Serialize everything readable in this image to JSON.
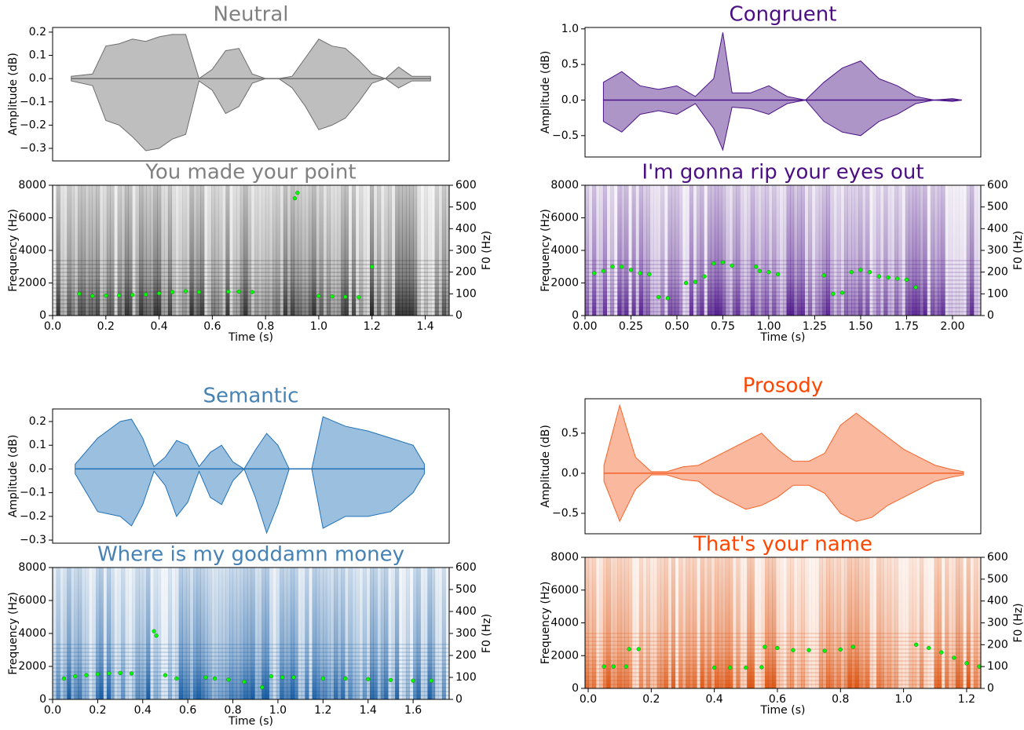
{
  "chart_data": [
    {
      "type": "waveform",
      "title": "Neutral",
      "title_color": "#808080",
      "ylabel": "Amplitude (dB)",
      "xlim": [
        0,
        1.49
      ],
      "ylim": [
        -0.354,
        0.22
      ],
      "yticks": [
        {
          "value": -0.3,
          "label": "−0.3"
        },
        {
          "value": -0.2,
          "label": "−0.2"
        },
        {
          "value": -0.1,
          "label": "−0.1"
        },
        {
          "value": 0,
          "label": "0.0"
        },
        0.1,
        0.2
      ],
      "x": [
        0.07,
        0.15,
        0.2,
        0.25,
        0.3,
        0.35,
        0.4,
        0.45,
        0.5,
        0.55,
        0.6,
        0.65,
        0.7,
        0.75,
        0.8,
        0.85,
        0.9,
        0.95,
        1.0,
        1.05,
        1.1,
        1.15,
        1.2,
        1.25,
        1.3,
        1.35,
        1.42
      ],
      "series": [
        {
          "color": "#6e6e6e",
          "values": [
            0.01,
            0.02,
            0.14,
            0.15,
            0.17,
            0.16,
            0.18,
            0.19,
            0.19,
            0.0,
            0.04,
            0.12,
            0.13,
            0.02,
            0.0,
            0.0,
            0.01,
            0.09,
            0.17,
            0.14,
            0.13,
            0.08,
            0.02,
            0.0,
            0.05,
            0.01,
            0.01
          ]
        },
        {
          "color": "#6e6e6e",
          "values": [
            -0.01,
            -0.03,
            -0.18,
            -0.2,
            -0.25,
            -0.31,
            -0.3,
            -0.26,
            -0.24,
            -0.01,
            -0.05,
            -0.15,
            -0.12,
            -0.02,
            0,
            0,
            -0.04,
            -0.12,
            -0.22,
            -0.2,
            -0.17,
            -0.1,
            -0.02,
            0,
            -0.04,
            -0.01,
            -0.01
          ]
        }
      ]
    },
    {
      "type": "spectrogram",
      "title": "You made your point",
      "title_color": "#808080",
      "color": "#1a1a1a",
      "xlabel": "Time (s)",
      "ylabel": "Frequency (Hz)",
      "y2label": "F0 (Hz)",
      "xlim": [
        0,
        1.49
      ],
      "xticks": [
        {
          "value": 0,
          "label": "0.0"
        },
        0.2,
        0.4,
        0.6,
        0.8,
        {
          "value": 1,
          "label": "1.0"
        },
        1.2,
        1.4
      ],
      "ylim": [
        0,
        8000
      ],
      "yticks": [
        0,
        2000,
        4000,
        6000,
        8000
      ],
      "y2lim": [
        0,
        600
      ],
      "y2ticks": [
        0,
        100,
        200,
        300,
        400,
        500,
        600
      ],
      "series": [
        {
          "color": "#00ff00",
          "axis": "y2",
          "x": [
            0.1,
            0.15,
            0.2,
            0.25,
            0.3,
            0.35,
            0.4,
            0.45,
            0.5,
            0.55,
            0.66,
            0.7,
            0.75,
            0.91,
            0.92,
            1.0,
            1.05,
            1.1,
            1.15,
            1.2
          ],
          "values": [
            100,
            90,
            92,
            93,
            95,
            97,
            102,
            108,
            112,
            108,
            110,
            110,
            108,
            540,
            565,
            90,
            88,
            86,
            84,
            225
          ]
        }
      ]
    },
    {
      "type": "waveform",
      "title": "Congruent",
      "title_color": "#4b0f82",
      "ylabel": "Amplitude (dB)",
      "xlim": [
        0,
        2.154
      ],
      "ylim": [
        -0.8,
        1.02
      ],
      "yticks": [
        {
          "value": -0.5,
          "label": "−0.5"
        },
        {
          "value": 0,
          "label": "0.0"
        },
        0.5,
        {
          "value": 1,
          "label": "1.0"
        }
      ],
      "x": [
        0.1,
        0.2,
        0.3,
        0.4,
        0.5,
        0.6,
        0.7,
        0.75,
        0.8,
        0.9,
        1.0,
        1.1,
        1.2,
        1.3,
        1.4,
        1.5,
        1.6,
        1.7,
        1.8,
        1.9,
        2.0,
        2.05
      ],
      "series": [
        {
          "color": "#4b1486",
          "values": [
            0.25,
            0.4,
            0.2,
            0.15,
            0.2,
            0.05,
            0.3,
            0.95,
            0.1,
            0.1,
            0.2,
            0.05,
            0.0,
            0.25,
            0.45,
            0.55,
            0.3,
            0.2,
            0.05,
            0.0,
            0.02,
            0.0
          ]
        },
        {
          "color": "#4b1486",
          "values": [
            -0.3,
            -0.45,
            -0.2,
            -0.15,
            -0.2,
            -0.05,
            -0.4,
            -0.7,
            -0.1,
            -0.12,
            -0.2,
            -0.05,
            0,
            -0.3,
            -0.45,
            -0.5,
            -0.3,
            -0.2,
            -0.05,
            0,
            -0.02,
            0
          ]
        }
      ]
    },
    {
      "type": "spectrogram",
      "title": "I'm gonna rip your eyes out",
      "title_color": "#4b0f82",
      "color": "#4b1486",
      "xlabel": "Time (s)",
      "ylabel": "Frequency (Hz)",
      "y2label": "F0 (Hz)",
      "xlim": [
        0,
        2.154
      ],
      "xticks": [
        {
          "value": 0,
          "label": "0.00"
        },
        0.25,
        {
          "value": 0.5,
          "label": "0.50"
        },
        0.75,
        {
          "value": 1,
          "label": "1.00"
        },
        1.25,
        {
          "value": 1.5,
          "label": "1.50"
        },
        1.75,
        {
          "value": 2,
          "label": "2.00"
        }
      ],
      "ylim": [
        0,
        8000
      ],
      "yticks": [
        0,
        2000,
        4000,
        6000,
        8000
      ],
      "y2lim": [
        0,
        600
      ],
      "y2ticks": [
        0,
        100,
        200,
        300,
        400,
        500,
        600
      ],
      "series": [
        {
          "color": "#00ff00",
          "axis": "y2",
          "x": [
            0.05,
            0.1,
            0.15,
            0.2,
            0.25,
            0.3,
            0.35,
            0.4,
            0.45,
            0.55,
            0.6,
            0.65,
            0.7,
            0.75,
            0.8,
            0.93,
            0.95,
            1.0,
            1.05,
            1.3,
            1.35,
            1.4,
            1.45,
            1.5,
            1.55,
            1.6,
            1.65,
            1.7,
            1.75,
            1.8
          ],
          "values": [
            195,
            205,
            225,
            225,
            210,
            195,
            190,
            85,
            80,
            150,
            155,
            180,
            240,
            245,
            230,
            225,
            205,
            200,
            190,
            185,
            100,
            105,
            200,
            210,
            200,
            180,
            175,
            170,
            165,
            130
          ]
        }
      ]
    },
    {
      "type": "waveform",
      "title": "Semantic",
      "title_color": "#4682b4",
      "ylabel": "Amplitude (dB)",
      "xlim": [
        0,
        1.76
      ],
      "ylim": [
        -0.313,
        0.253
      ],
      "yticks": [
        {
          "value": -0.3,
          "label": "−0.3"
        },
        {
          "value": -0.2,
          "label": "−0.2"
        },
        {
          "value": -0.1,
          "label": "−0.1"
        },
        {
          "value": 0,
          "label": "0.0"
        },
        0.1,
        0.2
      ],
      "x": [
        0.1,
        0.2,
        0.3,
        0.35,
        0.4,
        0.45,
        0.5,
        0.55,
        0.6,
        0.65,
        0.7,
        0.75,
        0.8,
        0.85,
        0.9,
        0.95,
        1.0,
        1.05,
        1.1,
        1.15,
        1.2,
        1.3,
        1.4,
        1.5,
        1.6,
        1.65
      ],
      "series": [
        {
          "color": "#2171b5",
          "values": [
            0.02,
            0.13,
            0.2,
            0.21,
            0.13,
            0.01,
            0.05,
            0.12,
            0.1,
            0.01,
            0.07,
            0.1,
            0.03,
            0.0,
            0.08,
            0.15,
            0.1,
            0.0,
            0.0,
            0.0,
            0.22,
            0.18,
            0.16,
            0.13,
            0.1,
            0.02
          ]
        },
        {
          "color": "#2171b5",
          "values": [
            -0.02,
            -0.18,
            -0.2,
            -0.24,
            -0.15,
            -0.01,
            -0.07,
            -0.2,
            -0.14,
            -0.01,
            -0.12,
            -0.15,
            -0.05,
            0,
            -0.12,
            -0.27,
            -0.15,
            0,
            0,
            0,
            -0.25,
            -0.2,
            -0.2,
            -0.18,
            -0.1,
            -0.02
          ]
        }
      ]
    },
    {
      "type": "spectrogram",
      "title": "Where is my goddamn money",
      "title_color": "#4682b4",
      "color": "#08519c",
      "xlabel": "Time (s)",
      "ylabel": "Frequency (Hz)",
      "y2label": "F0 (Hz)",
      "xlim": [
        0,
        1.76
      ],
      "xticks": [
        {
          "value": 0,
          "label": "0.0"
        },
        0.2,
        0.4,
        0.6,
        0.8,
        {
          "value": 1,
          "label": "1.0"
        },
        1.2,
        1.4,
        1.6
      ],
      "ylim": [
        0,
        8000
      ],
      "yticks": [
        0,
        2000,
        4000,
        6000,
        8000
      ],
      "y2lim": [
        0,
        600
      ],
      "y2ticks": [
        0,
        100,
        200,
        300,
        400,
        500,
        600
      ],
      "series": [
        {
          "color": "#00ff00",
          "axis": "y2",
          "x": [
            0.05,
            0.1,
            0.15,
            0.2,
            0.25,
            0.3,
            0.35,
            0.45,
            0.46,
            0.5,
            0.55,
            0.68,
            0.72,
            0.78,
            0.85,
            0.93,
            0.97,
            1.02,
            1.07,
            1.2,
            1.3,
            1.4,
            1.5,
            1.6,
            1.68
          ],
          "values": [
            95,
            105,
            110,
            115,
            118,
            120,
            118,
            310,
            290,
            110,
            95,
            100,
            95,
            90,
            80,
            55,
            105,
            100,
            100,
            95,
            95,
            92,
            88,
            85,
            85
          ]
        }
      ]
    },
    {
      "type": "waveform",
      "title": "Prosody",
      "title_color": "#ff4500",
      "ylabel": "Amplitude (dB)",
      "xlim": [
        -0.01,
        1.245
      ],
      "ylim": [
        -0.755,
        0.93
      ],
      "yticks": [
        {
          "value": -0.5,
          "label": "−0.5"
        },
        {
          "value": 0,
          "label": "0.0"
        },
        0.5
      ],
      "x": [
        0.05,
        0.1,
        0.15,
        0.2,
        0.25,
        0.3,
        0.35,
        0.4,
        0.45,
        0.5,
        0.55,
        0.6,
        0.65,
        0.7,
        0.75,
        0.8,
        0.85,
        0.9,
        0.95,
        1.0,
        1.05,
        1.1,
        1.15,
        1.19
      ],
      "series": [
        {
          "color": "#f4642a",
          "values": [
            0.1,
            0.85,
            0.2,
            0.02,
            0.02,
            0.08,
            0.1,
            0.2,
            0.3,
            0.4,
            0.5,
            0.3,
            0.15,
            0.15,
            0.25,
            0.6,
            0.75,
            0.6,
            0.45,
            0.3,
            0.2,
            0.1,
            0.05,
            0.02
          ]
        },
        {
          "color": "#f4642a",
          "values": [
            -0.1,
            -0.6,
            -0.2,
            -0.02,
            -0.02,
            -0.08,
            -0.1,
            -0.25,
            -0.35,
            -0.45,
            -0.4,
            -0.3,
            -0.15,
            -0.15,
            -0.25,
            -0.5,
            -0.6,
            -0.55,
            -0.4,
            -0.3,
            -0.2,
            -0.1,
            -0.05,
            -0.02
          ]
        }
      ]
    },
    {
      "type": "spectrogram",
      "title": "That's your name",
      "title_color": "#ff4500",
      "color": "#d94801",
      "xlabel": "Time (s)",
      "ylabel": "Frequency (Hz)",
      "y2label": "F0 (Hz)",
      "xlim": [
        -0.01,
        1.245
      ],
      "xticks": [
        {
          "value": 0,
          "label": "0.0"
        },
        0.2,
        0.4,
        0.6,
        0.8,
        {
          "value": 1,
          "label": "1.0"
        },
        1.2
      ],
      "ylim": [
        0,
        8000
      ],
      "yticks": [
        0,
        2000,
        4000,
        6000,
        8000
      ],
      "y2lim": [
        0,
        600
      ],
      "y2ticks": [
        0,
        100,
        200,
        300,
        400,
        500,
        600
      ],
      "series": [
        {
          "color": "#00ff00",
          "axis": "y2",
          "x": [
            0.05,
            0.08,
            0.12,
            0.13,
            0.16,
            0.4,
            0.45,
            0.5,
            0.55,
            0.56,
            0.6,
            0.65,
            0.7,
            0.75,
            0.8,
            0.84,
            1.04,
            1.08,
            1.12,
            1.16,
            1.2,
            1.24
          ],
          "values": [
            100,
            100,
            100,
            180,
            180,
            95,
            95,
            95,
            97,
            190,
            185,
            175,
            175,
            172,
            178,
            190,
            200,
            185,
            165,
            140,
            115,
            100
          ]
        }
      ]
    }
  ]
}
